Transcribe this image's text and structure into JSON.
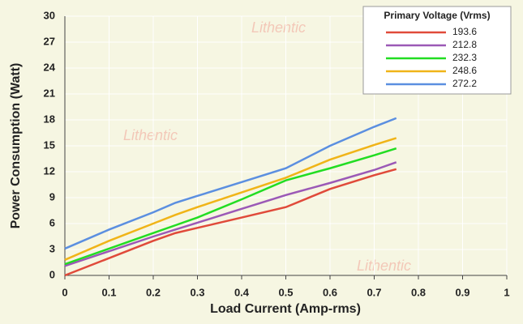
{
  "chart_data": {
    "type": "line",
    "title": null,
    "xlabel": "Load Current (Amp-rms)",
    "ylabel": "Power Consumption (Watt)",
    "legend_title": "Primary Voltage (Vrms)",
    "legend_position": "upper right",
    "watermark": "Lithentic",
    "grid": true,
    "x": [
      0,
      0.1,
      0.2,
      0.25,
      0.3,
      0.4,
      0.5,
      0.6,
      0.7,
      0.75
    ],
    "series": [
      {
        "name": "193.6",
        "color": "#e04a3a",
        "values": [
          0,
          2,
          4,
          4.9,
          5.5,
          6.7,
          7.9,
          10,
          11.6,
          12.3
        ]
      },
      {
        "name": "212.8",
        "color": "#9b59b6",
        "values": [
          1.1,
          2.8,
          4.5,
          5.3,
          6.1,
          7.7,
          9.3,
          10.7,
          12.2,
          13.1
        ]
      },
      {
        "name": "232.3",
        "color": "#22dd22",
        "values": [
          1.3,
          3.1,
          4.9,
          5.8,
          6.7,
          8.8,
          11,
          12.4,
          13.9,
          14.7
        ]
      },
      {
        "name": "248.6",
        "color": "#f0b418",
        "values": [
          1.8,
          4,
          6,
          7,
          7.9,
          9.6,
          11.3,
          13.4,
          15.1,
          15.9
        ]
      },
      {
        "name": "272.2",
        "color": "#5b8fe0",
        "values": [
          3.1,
          5.3,
          7.3,
          8.4,
          9.2,
          10.8,
          12.4,
          15,
          17.2,
          18.2
        ]
      }
    ],
    "xlim": [
      0,
      1
    ],
    "xticks": [
      0,
      0.1,
      0.2,
      0.3,
      0.4,
      0.5,
      0.6,
      0.7,
      0.8,
      0.9,
      1
    ],
    "ylim": [
      0,
      30
    ],
    "yticks": [
      0,
      3,
      6,
      9,
      12,
      15,
      18,
      21,
      24,
      27,
      30
    ]
  }
}
